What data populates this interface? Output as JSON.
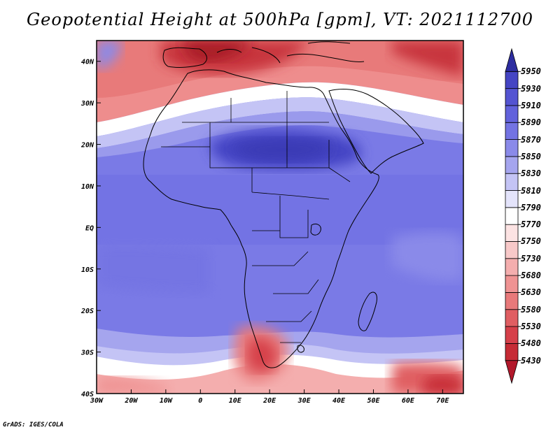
{
  "title": "Geopotential Height at 500hPa [gpm], VT: 2021112700",
  "footer": "GrADS: IGES/COLA",
  "colors": {
    "land_outline": "#000000",
    "palette": [
      "#b2182b",
      "#c62b35",
      "#d6404a",
      "#e05e62",
      "#e8797a",
      "#ef9393",
      "#f4aeae",
      "#f8c9c9",
      "#fce3e3",
      "#ffffff",
      "#e4e4fb",
      "#c4c4f5",
      "#a5a5ee",
      "#8a8ae9",
      "#7373e3",
      "#6262dc",
      "#5454d2",
      "#4545c4",
      "#3a3ab5",
      "#2d2da0"
    ]
  },
  "map": {
    "projection": "lat-lon",
    "lon_range": [
      -30,
      76
    ],
    "lat_range": [
      -40,
      45
    ],
    "x_ticks": [
      {
        "value": -30,
        "label": "30W"
      },
      {
        "value": -20,
        "label": "20W"
      },
      {
        "value": -10,
        "label": "10W"
      },
      {
        "value": 0,
        "label": "0"
      },
      {
        "value": 10,
        "label": "10E"
      },
      {
        "value": 20,
        "label": "20E"
      },
      {
        "value": 30,
        "label": "30E"
      },
      {
        "value": 40,
        "label": "40E"
      },
      {
        "value": 50,
        "label": "50E"
      },
      {
        "value": 60,
        "label": "60E"
      },
      {
        "value": 70,
        "label": "70E"
      }
    ],
    "y_ticks": [
      {
        "value": 40,
        "label": "40N"
      },
      {
        "value": 30,
        "label": "30N"
      },
      {
        "value": 20,
        "label": "20N"
      },
      {
        "value": 10,
        "label": "10N"
      },
      {
        "value": 0,
        "label": "EQ"
      },
      {
        "value": -10,
        "label": "10S"
      },
      {
        "value": -20,
        "label": "20S"
      },
      {
        "value": -30,
        "label": "30S"
      },
      {
        "value": -40,
        "label": "40S"
      }
    ]
  },
  "colorbar": {
    "levels": [
      "5430",
      "5480",
      "5530",
      "5580",
      "5630",
      "5680",
      "5730",
      "5750",
      "5770",
      "5790",
      "5810",
      "5830",
      "5850",
      "5870",
      "5890",
      "5910",
      "5930",
      "5950"
    ],
    "colors": [
      "#b2182b",
      "#c62b35",
      "#d6404a",
      "#e05e62",
      "#e8797a",
      "#ef9393",
      "#f4aeae",
      "#f8c9c9",
      "#fce3e3",
      "#ffffff",
      "#e4e4fb",
      "#c4c4f5",
      "#a5a5ee",
      "#8a8ae9",
      "#7373e3",
      "#6262dc",
      "#5454d2",
      "#4545c4",
      "#2d2da0"
    ]
  }
}
